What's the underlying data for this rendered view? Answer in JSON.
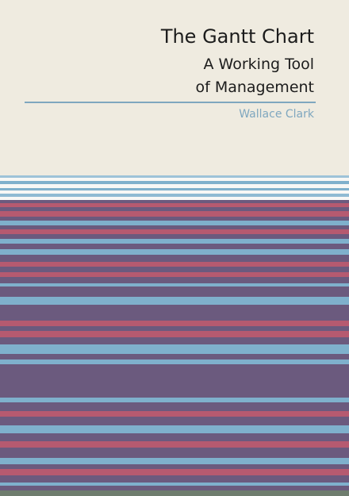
{
  "cover": {
    "title": "The Gantt Chart",
    "subtitle_line1": "A Working Tool",
    "subtitle_line2": "of Management",
    "author": "Wallace Clark"
  },
  "colors": {
    "background": "#efebe0",
    "accent_blue": "#7fa7bf",
    "stripe_purple": "#6b5a7e",
    "stripe_red": "#b65a70",
    "stripe_light_blue": "#7fb0cc",
    "stripe_white": "#f7f7f5"
  }
}
